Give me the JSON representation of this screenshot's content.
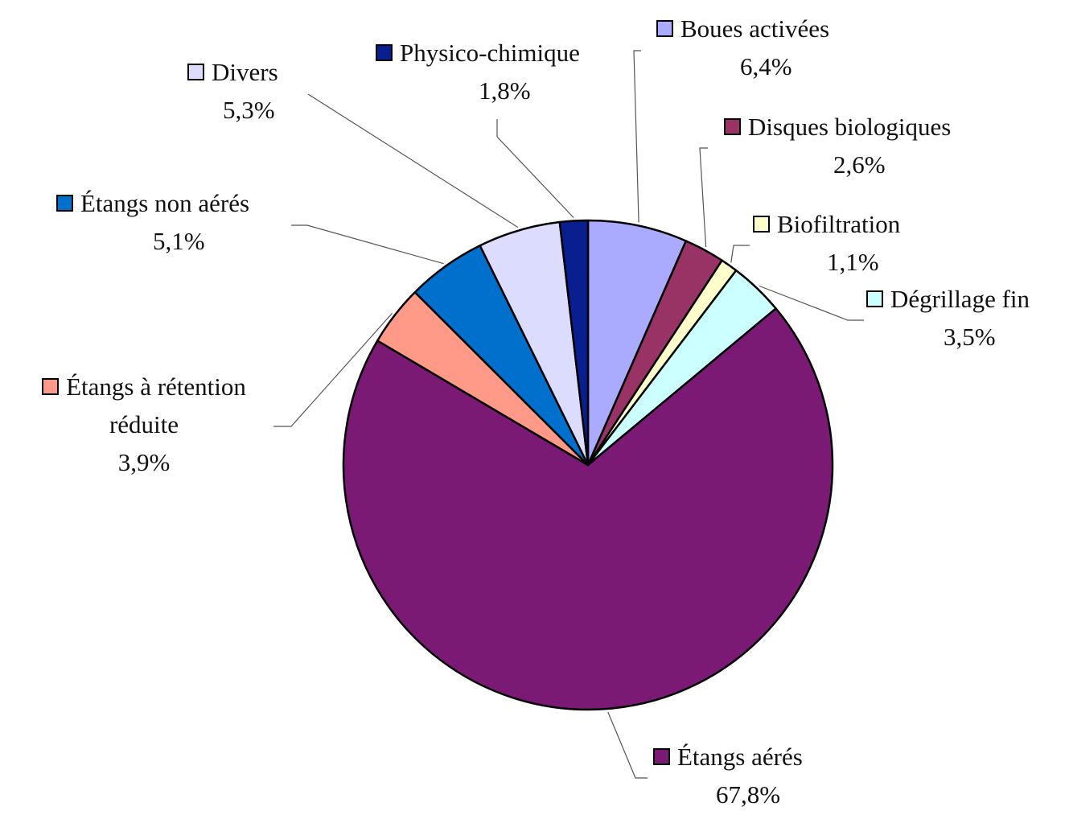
{
  "chart_data": {
    "type": "pie",
    "title": "",
    "slices": [
      {
        "label": "Boues activées",
        "value": 6.4,
        "value_label": "6,4%",
        "color": "#aaaaff"
      },
      {
        "label": "Disques biologiques",
        "value": 2.6,
        "value_label": "2,6%",
        "color": "#993366"
      },
      {
        "label": "Biofiltration",
        "value": 1.1,
        "value_label": "1,1%",
        "color": "#ffffcc"
      },
      {
        "label": "Dégrillage fin",
        "value": 3.5,
        "value_label": "3,5%",
        "color": "#ccffff"
      },
      {
        "label": "Étangs aérés",
        "value": 67.8,
        "value_label": "67,8%",
        "color": "#7a1a75"
      },
      {
        "label": "Étangs à rétention réduite",
        "value": 3.9,
        "value_label": "3,9%",
        "color": "#ff9988"
      },
      {
        "label": "Étangs non aérés",
        "value": 5.1,
        "value_label": "5,1%",
        "color": "#0070cc"
      },
      {
        "label": "Divers",
        "value": 5.3,
        "value_label": "5,3%",
        "color": "#dcdcff"
      },
      {
        "label": "Physico-chimique",
        "value": 1.8,
        "value_label": "1,8%",
        "color": "#0a1f8f"
      }
    ],
    "start_angle": "top (12 o'clock)",
    "direction": "clockwise",
    "legend": "callout labels with leader lines"
  }
}
